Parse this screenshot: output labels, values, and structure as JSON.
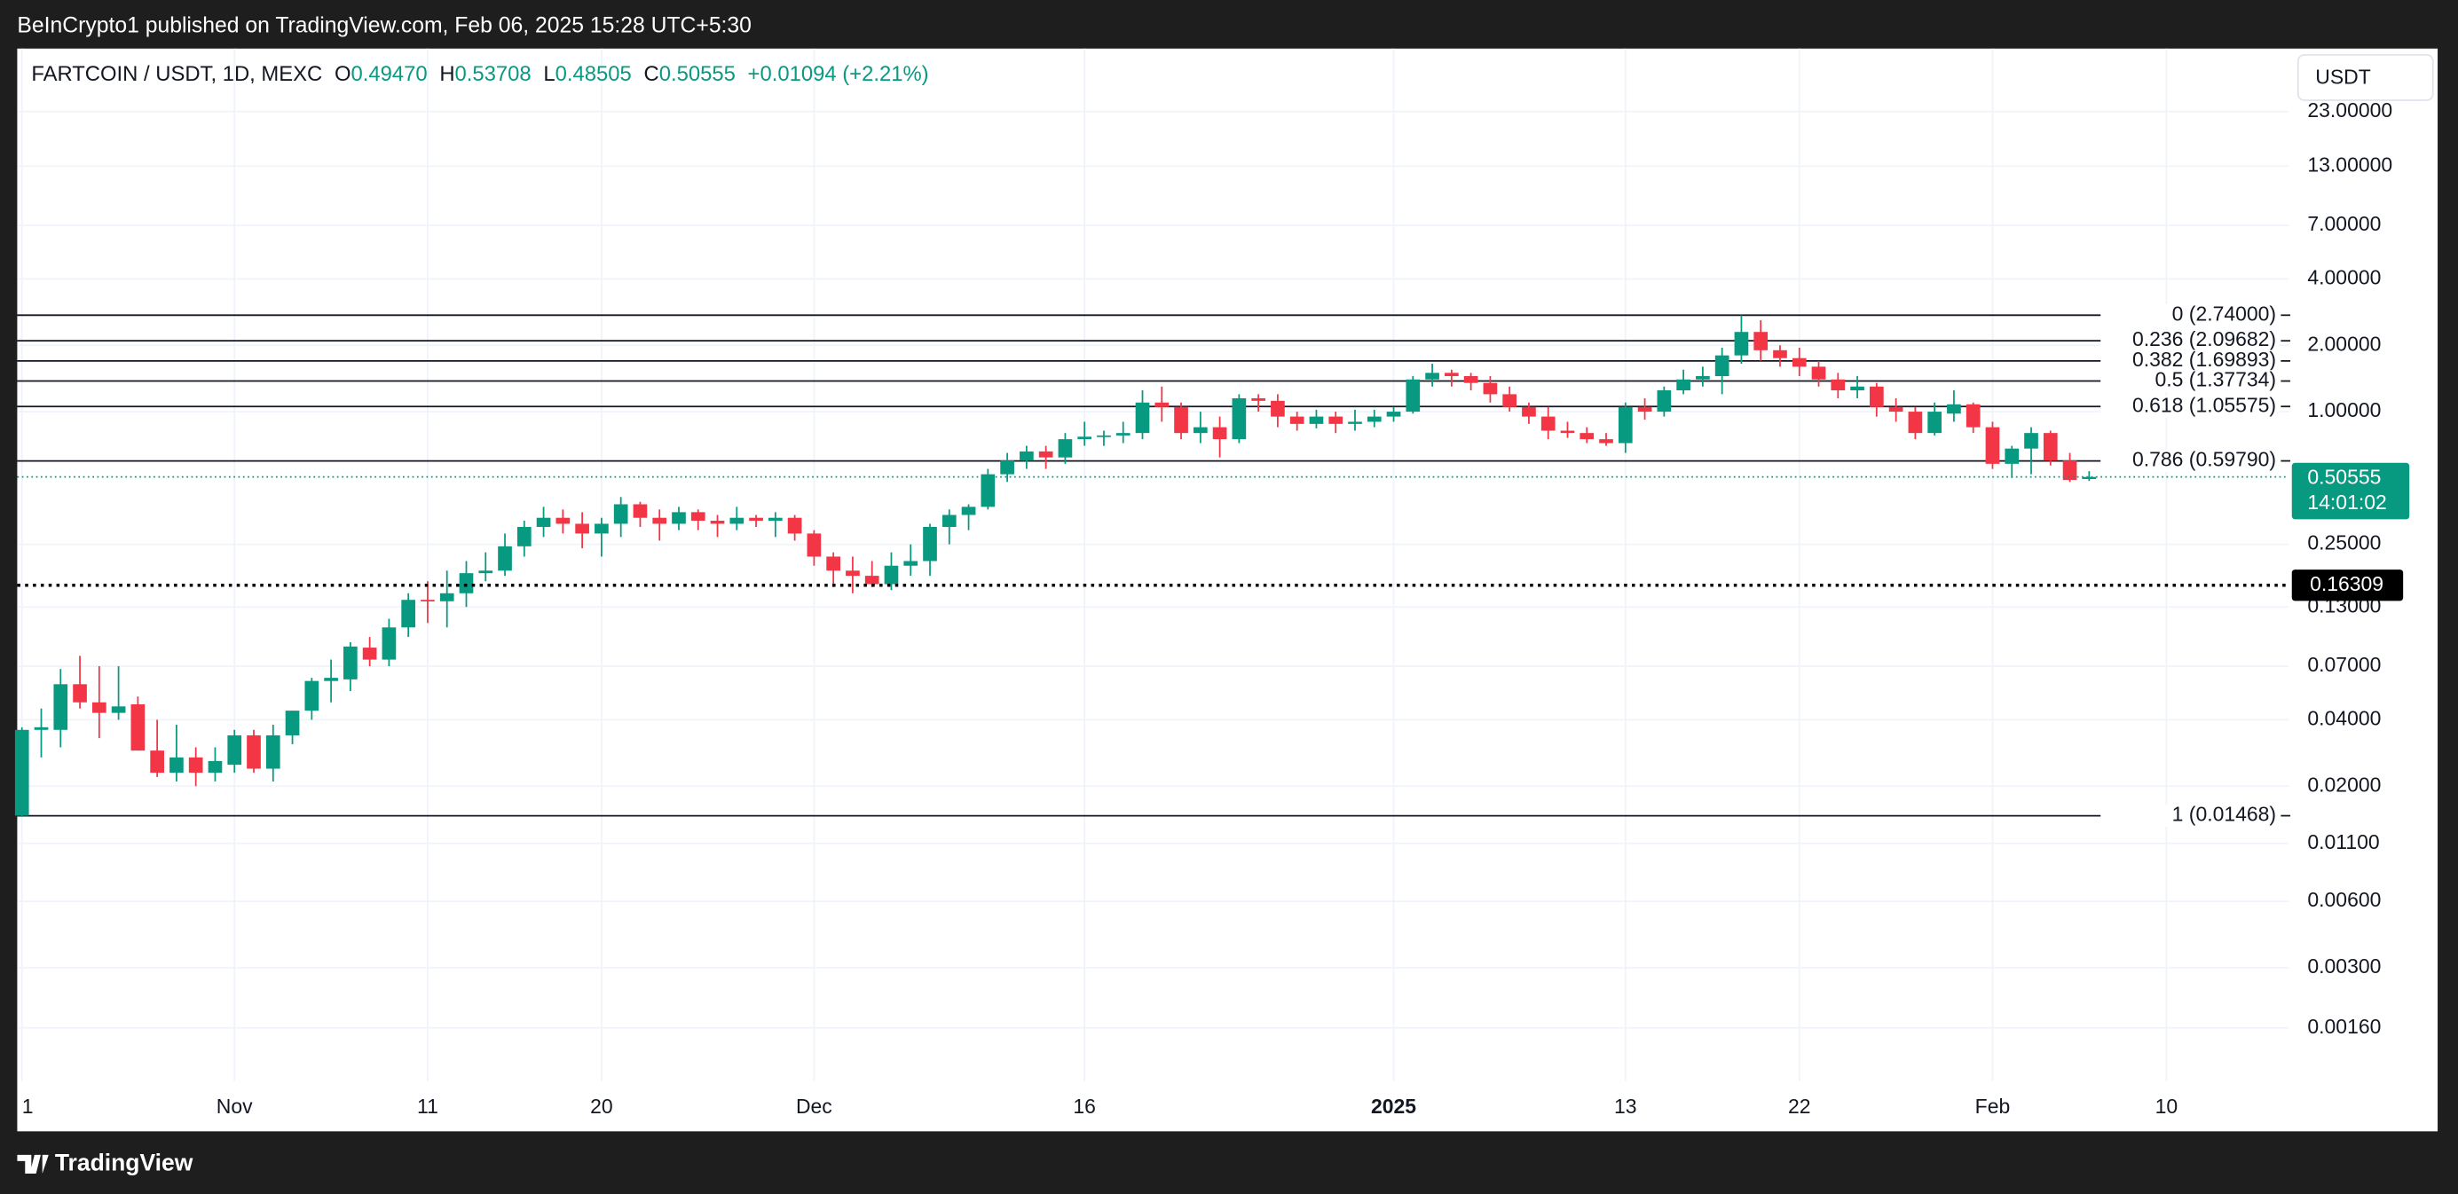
{
  "header": {
    "text": "BeInCrypto1 published on TradingView.com, Feb 06, 2025 15:28 UTC+5:30"
  },
  "legend": {
    "symbol": "FARTCOIN / USDT, 1D, MEXC",
    "fields": [
      {
        "key": "O",
        "value": "0.49470"
      },
      {
        "key": "H",
        "value": "0.53708"
      },
      {
        "key": "L",
        "value": "0.48505"
      },
      {
        "key": "C",
        "value": "0.50555"
      }
    ],
    "change": "+0.01094 (+2.21%)"
  },
  "currency_button": "USDT",
  "footer": {
    "brand": "TradingView"
  },
  "chart_data": {
    "type": "candlestick",
    "y_scale": "log",
    "grid": true,
    "up_color": "#089981",
    "down_color": "#f23645",
    "categories": [
      "1",
      null,
      null,
      null,
      null,
      null,
      null,
      null,
      null,
      null,
      null,
      "Nov",
      null,
      null,
      null,
      null,
      null,
      null,
      null,
      null,
      null,
      "11",
      null,
      null,
      null,
      null,
      null,
      null,
      null,
      null,
      "20",
      null,
      null,
      null,
      null,
      null,
      null,
      null,
      null,
      null,
      null,
      "Dec",
      null,
      null,
      null,
      null,
      null,
      null,
      null,
      null,
      null,
      null,
      null,
      null,
      null,
      "16",
      null,
      null,
      null,
      null,
      null,
      null,
      null,
      null,
      null,
      null,
      null,
      null,
      null,
      null,
      null,
      "2025",
      null,
      null,
      null,
      null,
      null,
      null,
      null,
      null,
      null,
      null,
      null,
      "13",
      null,
      null,
      null,
      null,
      null,
      null,
      null,
      null,
      "22",
      null,
      null,
      null,
      null,
      null,
      null,
      null,
      null,
      null,
      "Feb",
      null,
      null,
      null,
      null,
      null,
      null,
      null,
      null,
      "10"
    ],
    "open": [
      0.0147,
      0.036,
      0.036,
      0.058,
      0.048,
      0.043,
      0.047,
      0.029,
      0.023,
      0.027,
      0.023,
      0.025,
      0.034,
      0.024,
      0.034,
      0.044,
      0.06,
      0.061,
      0.085,
      0.075,
      0.105,
      0.14,
      0.138,
      0.15,
      0.185,
      0.19,
      0.245,
      0.3,
      0.33,
      0.31,
      0.28,
      0.31,
      0.38,
      0.33,
      0.31,
      0.35,
      0.32,
      0.31,
      0.33,
      0.32,
      0.33,
      0.28,
      0.22,
      0.19,
      0.18,
      0.165,
      0.2,
      0.21,
      0.3,
      0.34,
      0.37,
      0.52,
      0.6,
      0.66,
      0.62,
      0.75,
      0.77,
      0.78,
      0.8,
      1.1,
      1.05,
      0.8,
      0.85,
      0.75,
      1.15,
      1.12,
      0.95,
      0.88,
      0.95,
      0.88,
      0.9,
      0.95,
      1.0,
      1.4,
      1.5,
      1.45,
      1.35,
      1.2,
      1.05,
      0.95,
      0.82,
      0.8,
      0.75,
      0.72,
      1.05,
      1.0,
      1.25,
      1.4,
      1.45,
      1.8,
      2.3,
      1.9,
      1.75,
      1.6,
      1.4,
      1.25,
      1.3,
      1.05,
      1.0,
      0.8,
      0.98,
      1.08,
      0.85,
      0.58,
      0.68,
      0.8,
      0.6,
      0.4947,
      null,
      null,
      null,
      null
    ],
    "high": [
      0.037,
      0.045,
      0.068,
      0.078,
      0.07,
      0.07,
      0.051,
      0.04,
      0.038,
      0.03,
      0.03,
      0.036,
      0.036,
      0.038,
      0.044,
      0.062,
      0.075,
      0.09,
      0.095,
      0.115,
      0.15,
      0.17,
      0.19,
      0.21,
      0.23,
      0.28,
      0.32,
      0.37,
      0.36,
      0.35,
      0.33,
      0.41,
      0.39,
      0.36,
      0.37,
      0.36,
      0.34,
      0.37,
      0.34,
      0.35,
      0.34,
      0.29,
      0.23,
      0.22,
      0.21,
      0.23,
      0.25,
      0.31,
      0.36,
      0.38,
      0.55,
      0.65,
      0.7,
      0.7,
      0.8,
      0.9,
      0.82,
      0.9,
      1.25,
      1.3,
      1.1,
      1.0,
      0.95,
      1.2,
      1.2,
      1.2,
      1.0,
      1.02,
      1.0,
      1.02,
      1.02,
      1.05,
      1.45,
      1.65,
      1.55,
      1.5,
      1.45,
      1.3,
      1.1,
      1.05,
      0.9,
      0.85,
      0.8,
      1.1,
      1.15,
      1.3,
      1.55,
      1.6,
      1.95,
      2.74,
      2.6,
      2.0,
      1.95,
      1.7,
      1.5,
      1.45,
      1.35,
      1.15,
      1.05,
      1.1,
      1.25,
      1.1,
      0.9,
      0.7,
      0.85,
      0.82,
      0.65,
      0.53708,
      null,
      null,
      null,
      null
    ],
    "low": [
      0.0145,
      0.027,
      0.03,
      0.045,
      0.033,
      0.04,
      0.029,
      0.022,
      0.021,
      0.02,
      0.021,
      0.023,
      0.023,
      0.021,
      0.031,
      0.04,
      0.048,
      0.054,
      0.07,
      0.07,
      0.095,
      0.11,
      0.105,
      0.13,
      0.17,
      0.18,
      0.22,
      0.27,
      0.28,
      0.24,
      0.22,
      0.27,
      0.3,
      0.26,
      0.29,
      0.29,
      0.27,
      0.29,
      0.3,
      0.27,
      0.26,
      0.2,
      0.16,
      0.15,
      0.16,
      0.155,
      0.18,
      0.18,
      0.25,
      0.29,
      0.36,
      0.48,
      0.55,
      0.55,
      0.58,
      0.7,
      0.7,
      0.72,
      0.75,
      0.9,
      0.75,
      0.72,
      0.62,
      0.72,
      1.0,
      0.85,
      0.82,
      0.84,
      0.8,
      0.82,
      0.85,
      0.9,
      0.98,
      1.3,
      1.3,
      1.25,
      1.1,
      1.0,
      0.88,
      0.75,
      0.76,
      0.72,
      0.7,
      0.65,
      0.92,
      0.95,
      1.2,
      1.3,
      1.2,
      1.65,
      1.7,
      1.6,
      1.45,
      1.3,
      1.15,
      1.15,
      0.95,
      0.9,
      0.75,
      0.78,
      0.9,
      0.8,
      0.55,
      0.5,
      0.52,
      0.57,
      0.48,
      0.48505,
      null,
      null,
      null,
      null
    ],
    "close": [
      0.036,
      0.037,
      0.058,
      0.048,
      0.043,
      0.046,
      0.029,
      0.023,
      0.027,
      0.023,
      0.026,
      0.034,
      0.024,
      0.034,
      0.044,
      0.06,
      0.062,
      0.086,
      0.075,
      0.105,
      0.14,
      0.138,
      0.15,
      0.185,
      0.19,
      0.245,
      0.3,
      0.33,
      0.31,
      0.28,
      0.31,
      0.38,
      0.33,
      0.31,
      0.35,
      0.32,
      0.31,
      0.33,
      0.32,
      0.33,
      0.28,
      0.22,
      0.19,
      0.18,
      0.165,
      0.2,
      0.21,
      0.3,
      0.34,
      0.37,
      0.52,
      0.6,
      0.66,
      0.62,
      0.75,
      0.77,
      0.78,
      0.8,
      1.1,
      1.05,
      0.8,
      0.85,
      0.75,
      1.15,
      1.12,
      0.95,
      0.88,
      0.95,
      0.88,
      0.9,
      0.95,
      1.0,
      1.4,
      1.5,
      1.45,
      1.35,
      1.2,
      1.05,
      0.95,
      0.82,
      0.8,
      0.75,
      0.72,
      1.05,
      1.0,
      1.25,
      1.4,
      1.45,
      1.8,
      2.3,
      1.9,
      1.75,
      1.6,
      1.4,
      1.25,
      1.3,
      1.05,
      1.0,
      0.8,
      1.0,
      1.08,
      0.85,
      0.58,
      0.68,
      0.8,
      0.6,
      0.49,
      0.50555,
      null,
      null,
      null,
      null
    ],
    "ylim": [
      0.000917,
      44.4
    ],
    "yticks": [
      {
        "value": 0.0016,
        "label": "0.00160"
      },
      {
        "value": 0.003,
        "label": "0.00300"
      },
      {
        "value": 0.006,
        "label": "0.00600"
      },
      {
        "value": 0.011,
        "label": "0.01100"
      },
      {
        "value": 0.02,
        "label": "0.02000"
      },
      {
        "value": 0.04,
        "label": "0.04000"
      },
      {
        "value": 0.07,
        "label": "0.07000"
      },
      {
        "value": 0.13,
        "label": "0.13000"
      },
      {
        "value": 0.25,
        "label": "0.25000"
      },
      {
        "value": 1,
        "label": "1.00000"
      },
      {
        "value": 2,
        "label": "2.00000"
      },
      {
        "value": 4,
        "label": "4.00000"
      },
      {
        "value": 7,
        "label": "7.00000"
      },
      {
        "value": 13,
        "label": "13.00000"
      },
      {
        "value": 23,
        "label": "23.00000"
      }
    ],
    "fib_levels": [
      {
        "value": 2.74,
        "label": "0 (2.74000)"
      },
      {
        "value": 2.09682,
        "label": "0.236 (2.09682)"
      },
      {
        "value": 1.69893,
        "label": "0.382 (1.69893)"
      },
      {
        "value": 1.37734,
        "label": "0.5 (1.37734)"
      },
      {
        "value": 1.05575,
        "label": "0.618 (1.05575)"
      },
      {
        "value": 0.5979,
        "label": "0.786 (0.59790)"
      },
      {
        "value": 0.01468,
        "label": "1 (0.01468)"
      }
    ],
    "support": {
      "value": 0.16309,
      "label": "0.16309"
    },
    "last_price": {
      "value": 0.50555,
      "label": "0.50555",
      "countdown": "14:01:02"
    }
  }
}
